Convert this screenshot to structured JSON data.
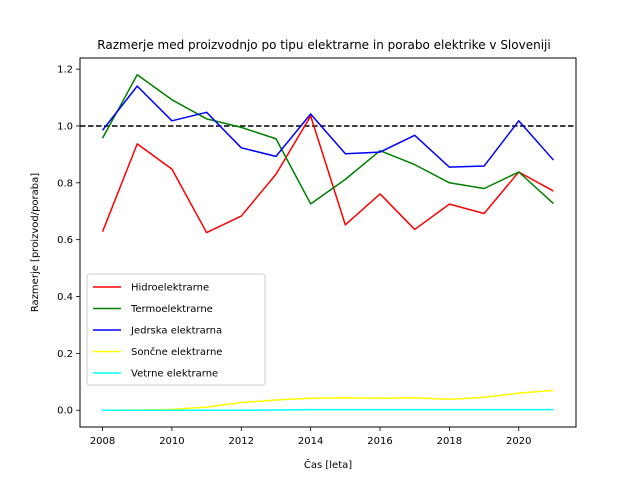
{
  "chart_data": {
    "type": "line",
    "title": "Razmerje med proizvodnjo po tipu elektrarne in porabo elektrike v Sloveniji",
    "xlabel": "Čas [leta]",
    "ylabel": "Razmerje [proizvod/poraba]",
    "xlim": [
      2007.35,
      2021.65
    ],
    "ylim": [
      -0.059,
      1.239
    ],
    "xticks": [
      2008,
      2010,
      2012,
      2014,
      2016,
      2018,
      2020
    ],
    "yticks": [
      0.0,
      0.2,
      0.4,
      0.6,
      0.8,
      1.0,
      1.2
    ],
    "ytick_labels": [
      "0.0",
      "0.2",
      "0.4",
      "0.6",
      "0.8",
      "1.0",
      "1.2"
    ],
    "reference_line": {
      "y": 1.0,
      "style": "dashed",
      "color": "#000000"
    },
    "legend_position": "center-left",
    "grid": false,
    "x": [
      2008,
      2009,
      2010,
      2011,
      2012,
      2013,
      2014,
      2015,
      2016,
      2017,
      2018,
      2019,
      2020,
      2021
    ],
    "series": [
      {
        "name": "Hidroelektrarne",
        "color": "#ff0000",
        "values": [
          0.628,
          0.937,
          0.848,
          0.625,
          0.683,
          0.83,
          1.035,
          0.652,
          0.761,
          0.636,
          0.725,
          0.692,
          0.838,
          0.771
        ]
      },
      {
        "name": "Termoelektrarne",
        "color": "#008000",
        "values": [
          0.957,
          1.18,
          1.092,
          1.025,
          0.995,
          0.955,
          0.726,
          0.812,
          0.913,
          0.864,
          0.8,
          0.78,
          0.838,
          0.727
        ]
      },
      {
        "name": "Jedrska elektrarna",
        "color": "#0000ff",
        "values": [
          0.985,
          1.14,
          1.018,
          1.048,
          0.923,
          0.893,
          1.042,
          0.902,
          0.908,
          0.967,
          0.855,
          0.859,
          1.018,
          0.88
        ]
      },
      {
        "name": "Sončne elektrarne",
        "color": "#ffff00",
        "values": [
          0.0,
          0.001,
          0.003,
          0.011,
          0.027,
          0.036,
          0.042,
          0.044,
          0.042,
          0.044,
          0.038,
          0.045,
          0.06,
          0.07
        ]
      },
      {
        "name": "Vetrne elektrarne",
        "color": "#00ffff",
        "values": [
          0.0,
          0.0,
          0.0,
          0.0,
          0.0,
          0.001,
          0.002,
          0.002,
          0.002,
          0.002,
          0.002,
          0.002,
          0.002,
          0.002
        ]
      }
    ]
  }
}
